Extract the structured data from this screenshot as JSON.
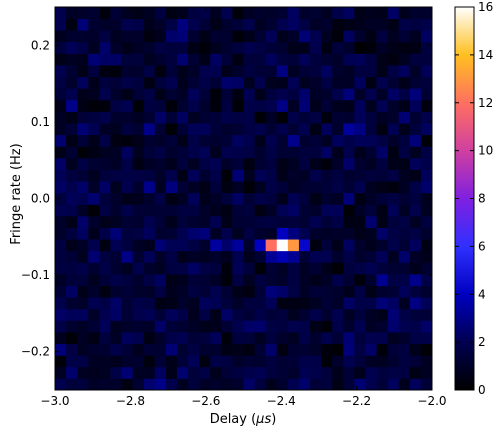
{
  "chart_data": {
    "type": "heatmap",
    "title": "",
    "xlabel_prefix": "Delay (",
    "xlabel_unit": "μs",
    "xlabel_suffix": ")",
    "ylabel": "Fringe rate (Hz)",
    "xlim": [
      -3.0,
      -2.0
    ],
    "ylim": [
      -0.25,
      0.25
    ],
    "x_ticks": [
      {
        "value": -3.0,
        "label": "−3.0"
      },
      {
        "value": -2.8,
        "label": "−2.8"
      },
      {
        "value": -2.6,
        "label": "−2.6"
      },
      {
        "value": -2.4,
        "label": "−2.4"
      },
      {
        "value": -2.2,
        "label": "−2.2"
      },
      {
        "value": -2.0,
        "label": "−2.0"
      }
    ],
    "y_ticks": [
      {
        "value": 0.2,
        "label": "0.2"
      },
      {
        "value": 0.1,
        "label": "0.1"
      },
      {
        "value": 0.0,
        "label": "0.0"
      },
      {
        "value": -0.1,
        "label": "−0.1"
      },
      {
        "value": -0.2,
        "label": "−0.2"
      }
    ],
    "colorbar": {
      "colormap": "gnuplot2",
      "range": [
        0,
        16
      ],
      "ticks": [
        {
          "value": 0,
          "label": "0"
        },
        {
          "value": 2,
          "label": "2"
        },
        {
          "value": 4,
          "label": "4"
        },
        {
          "value": 6,
          "label": "6"
        },
        {
          "value": 8,
          "label": "8"
        },
        {
          "value": 10,
          "label": "10"
        },
        {
          "value": 12,
          "label": "12"
        },
        {
          "value": 14,
          "label": "14"
        },
        {
          "value": 16,
          "label": "16"
        }
      ]
    },
    "grid": {
      "x_bins": 34,
      "y_bins": 33,
      "x_range": [
        -3.0,
        -2.0
      ],
      "y_range": [
        -0.25,
        0.25
      ],
      "background_level_range": [
        0.0,
        3.2
      ],
      "peak_cells": [
        {
          "x": -2.408,
          "y": -0.0606,
          "value": 16.0
        },
        {
          "x": -2.379,
          "y": -0.0606,
          "value": 13.0
        },
        {
          "x": -2.438,
          "y": -0.0606,
          "value": 12.0
        },
        {
          "x": -2.408,
          "y": -0.0455,
          "value": 4.0
        },
        {
          "x": -2.408,
          "y": -0.0758,
          "value": 3.8
        },
        {
          "x": -2.349,
          "y": -0.0606,
          "value": 4.3
        },
        {
          "x": -2.467,
          "y": -0.0606,
          "value": 4.0
        },
        {
          "x": -2.526,
          "y": -0.0606,
          "value": 3.3
        },
        {
          "x": -2.585,
          "y": -0.0606,
          "value": 3.4
        },
        {
          "x": -2.438,
          "y": -0.0758,
          "value": 3.2
        },
        {
          "x": -2.379,
          "y": -0.0758,
          "value": 3.2
        }
      ]
    }
  }
}
